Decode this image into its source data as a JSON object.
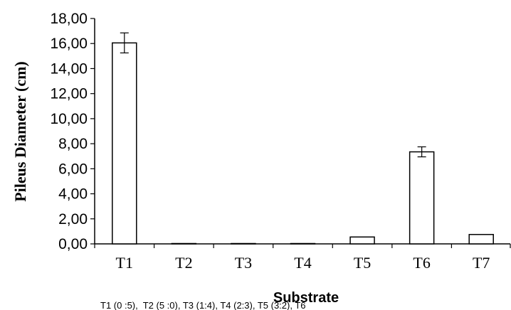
{
  "chart_data": {
    "type": "bar",
    "categories": [
      "T1",
      "T2",
      "T3",
      "T4",
      "T5",
      "T6",
      "T7"
    ],
    "values": [
      16.05,
      0,
      0,
      0,
      0.55,
      7.35,
      0.75
    ],
    "errors": [
      0.8,
      0,
      0,
      0,
      0,
      0.4,
      0
    ],
    "ylabel": "Pileus Diameter (cm)",
    "xlabel": "Substrate",
    "ylim": [
      0,
      18
    ],
    "yticks": [
      0,
      2,
      4,
      6,
      8,
      10,
      12,
      14,
      16,
      18
    ],
    "ytick_labels": [
      "0,00",
      "2,00",
      "4,00",
      "6,00",
      "8,00",
      "10,00",
      "12,00",
      "14,00",
      "16,00",
      "18,00"
    ],
    "grid": false,
    "legend": "none",
    "annotation": "T1 (0 :5),  T2 (5 :0), T3 (1:4), T4 (2:3), T5 (3:2), T6",
    "colors": {
      "bar_fill": "#ffffff",
      "bar_stroke": "#000000",
      "axis": "#000000"
    }
  }
}
